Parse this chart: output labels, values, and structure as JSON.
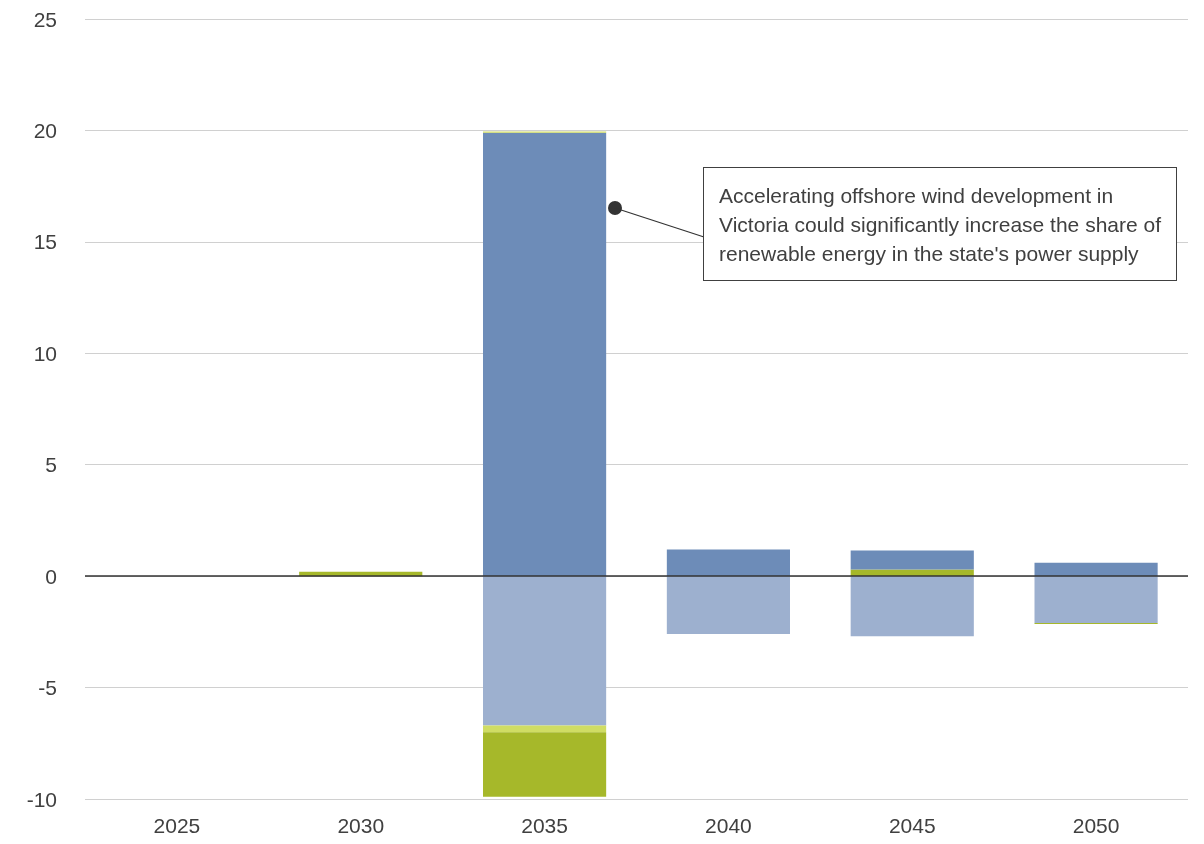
{
  "chart_data": {
    "type": "bar",
    "stacked": true,
    "categories": [
      "2025",
      "2030",
      "2035",
      "2040",
      "2045",
      "2050"
    ],
    "series": [
      {
        "color": "#a6b82a",
        "values": [
          null,
          0.2,
          null,
          null,
          0.3,
          null
        ]
      },
      {
        "color": "#9db0cf",
        "values": [
          null,
          null,
          -6.7,
          -2.6,
          -2.7,
          -2.1
        ]
      },
      {
        "color": "#6d8cb8",
        "values": [
          null,
          null,
          19.9,
          1.2,
          0.85,
          0.6
        ]
      },
      {
        "color": "#d0dd64",
        "values": [
          null,
          null,
          0.05,
          null,
          null,
          null
        ]
      },
      {
        "color": "#d0dd64",
        "values": [
          null,
          null,
          -0.3,
          null,
          null,
          null
        ]
      },
      {
        "color": "#a6b82a",
        "values": [
          null,
          null,
          -2.9,
          null,
          null,
          -0.05
        ]
      }
    ],
    "ylim": [
      -10,
      25
    ],
    "yticks": [
      -10,
      -5,
      0,
      5,
      10,
      15,
      20,
      25
    ],
    "grid": "y",
    "ref_lines": [
      {
        "axis": "y",
        "value": 0,
        "color": "#333333"
      }
    ],
    "annotations": [
      "Accelerating offshore wind development in Victoria could significantly increase the share of renewable energy in the state's power supply"
    ]
  }
}
